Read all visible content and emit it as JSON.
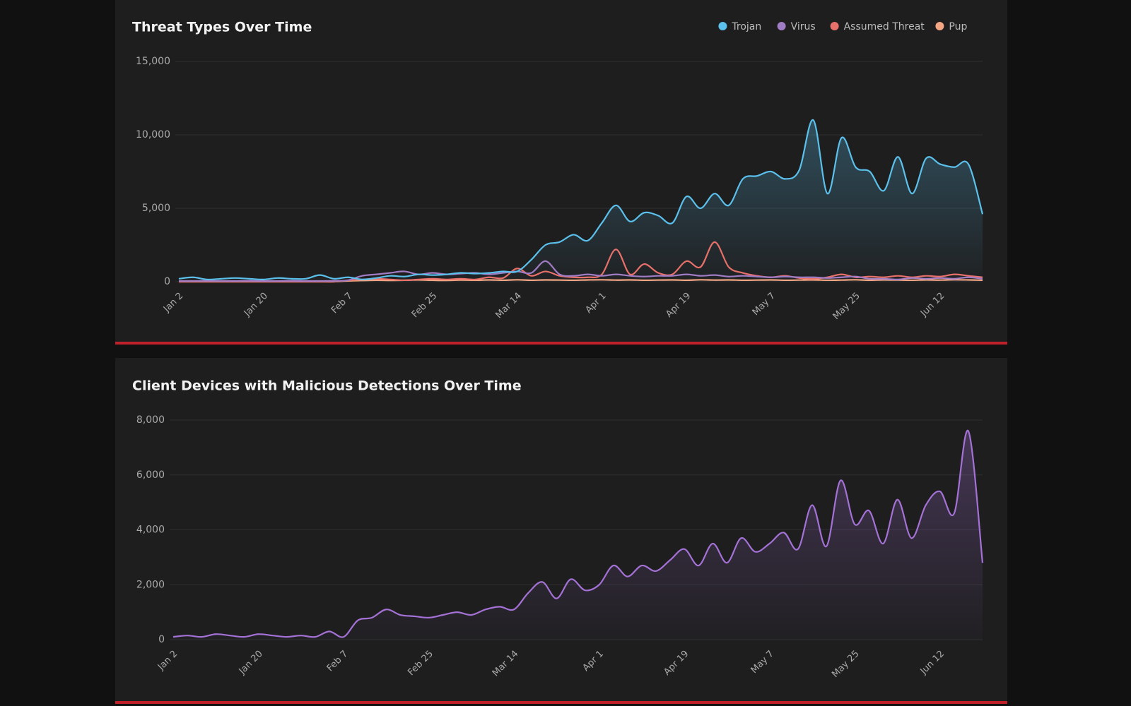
{
  "chart_data": [
    {
      "type": "line",
      "title": "Threat Types Over Time",
      "categories": [
        "Jan 2",
        null,
        null,
        null,
        null,
        null,
        "Jan 20",
        null,
        null,
        null,
        null,
        null,
        "Feb 7",
        null,
        null,
        null,
        null,
        null,
        "Feb 25",
        null,
        null,
        null,
        null,
        null,
        "Mar 14",
        null,
        null,
        null,
        null,
        null,
        "Apr 1",
        null,
        null,
        null,
        null,
        null,
        "Apr 19",
        null,
        null,
        null,
        null,
        null,
        "May 7",
        null,
        null,
        null,
        null,
        null,
        "May 25",
        null,
        null,
        null,
        null,
        null,
        "Jun 12",
        null,
        null,
        null
      ],
      "series": [
        {
          "name": "Trojan",
          "color": "#5bc0eb",
          "values": [
            200,
            300,
            150,
            200,
            250,
            200,
            150,
            250,
            200,
            200,
            450,
            200,
            300,
            150,
            250,
            400,
            350,
            500,
            450,
            500,
            600,
            550,
            600,
            700,
            700,
            1500,
            2500,
            2700,
            3200,
            2800,
            4000,
            5200,
            4100,
            4700,
            4500,
            4000,
            5800,
            5000,
            6000,
            5200,
            7000,
            7200,
            7500,
            7000,
            7600,
            11000,
            6000,
            9800,
            7800,
            7500,
            6200,
            8500,
            6000,
            8400,
            8000,
            7800,
            8000,
            4600
          ]
        },
        {
          "name": "Virus",
          "color": "#a07cc5",
          "values": [
            50,
            50,
            60,
            50,
            50,
            60,
            50,
            50,
            60,
            50,
            50,
            60,
            100,
            400,
            500,
            600,
            700,
            500,
            600,
            500,
            550,
            600,
            500,
            600,
            700,
            600,
            1400,
            500,
            400,
            500,
            400,
            500,
            400,
            350,
            400,
            400,
            500,
            400,
            450,
            350,
            400,
            350,
            300,
            350,
            300,
            300,
            250,
            300,
            350,
            200,
            200,
            150,
            250,
            200,
            250,
            200,
            300,
            200
          ]
        },
        {
          "name": "Assumed Threat",
          "color": "#e8706a",
          "values": [
            0,
            0,
            0,
            0,
            0,
            0,
            0,
            0,
            0,
            0,
            0,
            0,
            100,
            150,
            200,
            150,
            100,
            150,
            200,
            150,
            200,
            150,
            300,
            250,
            900,
            400,
            700,
            400,
            300,
            300,
            500,
            2200,
            500,
            1200,
            600,
            500,
            1400,
            1000,
            2700,
            1000,
            600,
            400,
            300,
            400,
            250,
            200,
            300,
            500,
            300,
            350,
            300,
            400,
            300,
            400,
            350,
            500,
            400,
            300
          ]
        },
        {
          "name": "Pup",
          "color": "#f4a582",
          "values": [
            0,
            0,
            0,
            0,
            0,
            0,
            0,
            0,
            0,
            0,
            0,
            0,
            50,
            80,
            100,
            90,
            100,
            120,
            100,
            90,
            110,
            100,
            120,
            100,
            130,
            100,
            120,
            110,
            100,
            120,
            130,
            110,
            120,
            100,
            110,
            120,
            100,
            130,
            110,
            120,
            100,
            110,
            120,
            100,
            110,
            120,
            100,
            110,
            130,
            100,
            120,
            110,
            100,
            120,
            110,
            130,
            120,
            100
          ]
        }
      ],
      "ylim": [
        0,
        15000
      ],
      "yticks": [
        0,
        {
          "value": 5000,
          "label": "5,000"
        },
        {
          "value": 10000,
          "label": "10,000"
        },
        {
          "value": 15000,
          "label": "15,000"
        }
      ],
      "grid": true,
      "legend": "top-right"
    },
    {
      "type": "line",
      "title": "Client Devices with Malicious Detections Over Time",
      "categories": [
        "Jan 2",
        null,
        null,
        null,
        null,
        null,
        "Jan 20",
        null,
        null,
        null,
        null,
        null,
        "Feb 7",
        null,
        null,
        null,
        null,
        null,
        "Feb 25",
        null,
        null,
        null,
        null,
        null,
        "Mar 14",
        null,
        null,
        null,
        null,
        null,
        "Apr 1",
        null,
        null,
        null,
        null,
        null,
        "Apr 19",
        null,
        null,
        null,
        null,
        null,
        "May 7",
        null,
        null,
        null,
        null,
        null,
        "May 25",
        null,
        null,
        null,
        null,
        null,
        "Jun 12",
        null,
        null,
        null
      ],
      "series": [
        {
          "color": "#a472d6",
          "values": [
            100,
            150,
            100,
            200,
            150,
            100,
            200,
            150,
            100,
            150,
            100,
            300,
            100,
            700,
            800,
            1100,
            900,
            850,
            800,
            900,
            1000,
            900,
            1100,
            1200,
            1100,
            1700,
            2100,
            1500,
            2200,
            1800,
            2000,
            2700,
            2300,
            2700,
            2500,
            2900,
            3300,
            2700,
            3500,
            2800,
            3700,
            3200,
            3500,
            3900,
            3300,
            4900,
            3400,
            5800,
            4200,
            4700,
            3500,
            5100,
            3700,
            4900,
            5400,
            4600,
            7600,
            2800
          ]
        }
      ],
      "ylim": [
        0,
        8000
      ],
      "yticks": [
        0,
        {
          "value": 2000,
          "label": "2,000"
        },
        {
          "value": 4000,
          "label": "4,000"
        },
        {
          "value": 6000,
          "label": "6,000"
        },
        {
          "value": 8000,
          "label": "8,000"
        }
      ],
      "grid": true
    }
  ]
}
